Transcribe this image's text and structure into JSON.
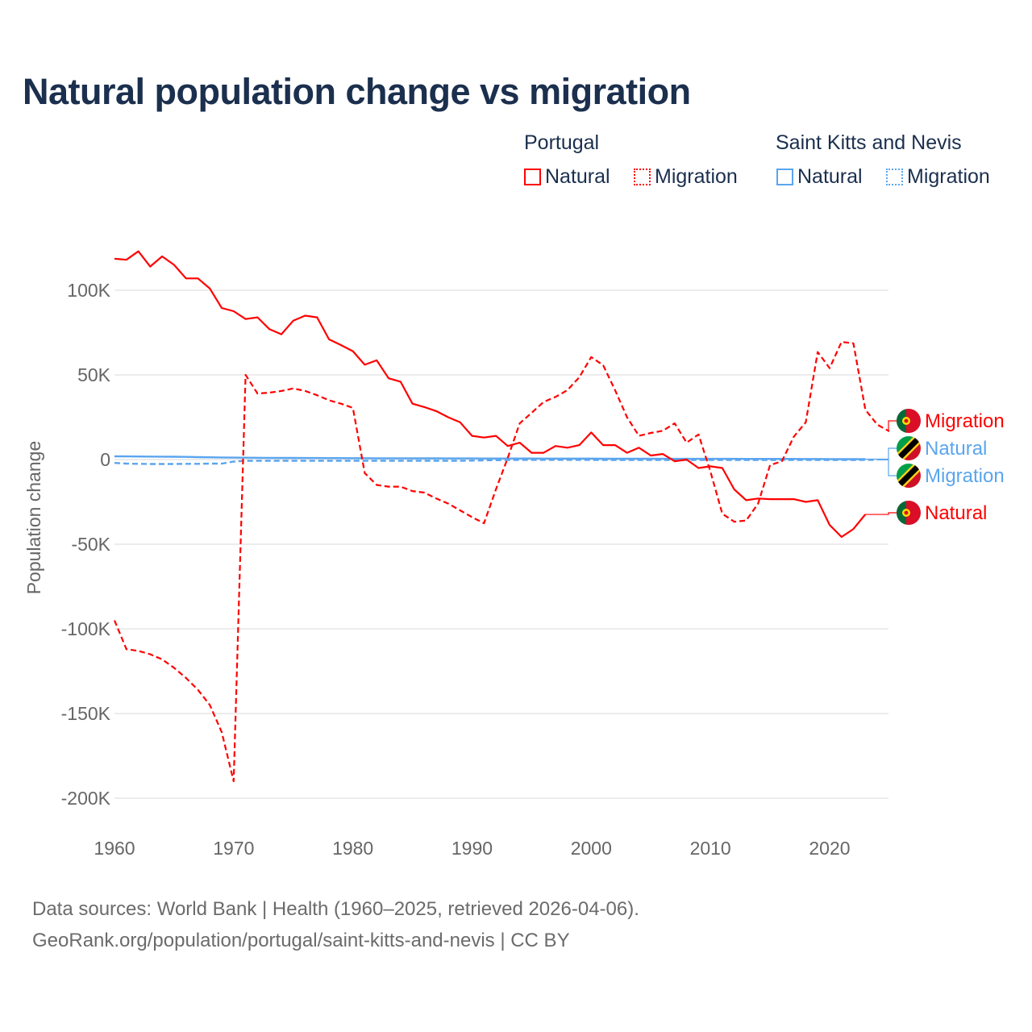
{
  "title": "Natural population change vs migration",
  "legend": {
    "groups": [
      {
        "name": "Portugal",
        "color": "#ff0000",
        "items": [
          "Natural",
          "Migration"
        ]
      },
      {
        "name": "Saint Kitts and Nevis",
        "color": "#5aa5ef",
        "items": [
          "Natural",
          "Migration"
        ]
      }
    ]
  },
  "footer": {
    "line1": "Data sources: World Bank | Health (1960–2025, retrieved 2026-04-06).",
    "line2": "GeoRank.org/population/portugal/saint-kitts-and-nevis | CC BY"
  },
  "chart_data": {
    "type": "line",
    "title": "Natural population change vs migration",
    "ylabel": "Population change",
    "xlabel": "",
    "xlim": [
      1960,
      2025
    ],
    "ylim": [
      -200000,
      120000
    ],
    "x_ticks": [
      "1960",
      "1970",
      "1980",
      "1990",
      "2000",
      "2010",
      "2020"
    ],
    "y_ticks": [
      {
        "value": 100000,
        "label": "100K"
      },
      {
        "value": 50000,
        "label": "50K"
      },
      {
        "value": 0,
        "label": "0"
      },
      {
        "value": -50000,
        "label": "-50K"
      },
      {
        "value": -100000,
        "label": "-100K"
      },
      {
        "value": -150000,
        "label": "-150K"
      },
      {
        "value": -200000,
        "label": "-200K"
      }
    ],
    "grid": true,
    "legend_position": "top-right",
    "start_year": 1960,
    "series": [
      {
        "name": "Portugal Natural",
        "end_label": "Natural",
        "country": "Portugal",
        "color": "#ff0000",
        "dash": false,
        "values": [
          118600,
          118000,
          123000,
          114000,
          120000,
          115000,
          107000,
          107000,
          101000,
          89500,
          87600,
          83000,
          84000,
          77000,
          74000,
          82000,
          85000,
          84000,
          71000,
          67600,
          64000,
          56000,
          58600,
          48000,
          46000,
          33000,
          31000,
          28600,
          25000,
          22000,
          14000,
          13000,
          14000,
          8000,
          10000,
          4000,
          4000,
          8000,
          7000,
          8500,
          16000,
          8500,
          8500,
          4000,
          7000,
          2400,
          3300,
          -1000,
          0,
          -5000,
          -4000,
          -5000,
          -17600,
          -24000,
          -23000,
          -23400,
          -23400,
          -23400,
          -25000,
          -24000,
          -38600,
          -45700,
          -41000,
          -32400
        ]
      },
      {
        "name": "Portugal Migration",
        "end_label": "Migration",
        "country": "Portugal",
        "color": "#ff0000",
        "dash": true,
        "values": [
          -95000,
          -112000,
          -113000,
          -115000,
          -118000,
          -123000,
          -129000,
          -136000,
          -145000,
          -161000,
          -190000,
          50000,
          39000,
          39500,
          40500,
          42000,
          40500,
          38000,
          35000,
          33000,
          30500,
          -8000,
          -15000,
          -16000,
          -16000,
          -18600,
          -19500,
          -23000,
          -26000,
          -30000,
          -34000,
          -37600,
          -17600,
          1000,
          21400,
          27600,
          34000,
          37000,
          41000,
          48600,
          60500,
          55700,
          41000,
          25000,
          14000,
          15700,
          17000,
          21400,
          10000,
          14800,
          -7000,
          -32000,
          -36700,
          -36000,
          -26000,
          -3300,
          -1000,
          13500,
          22000,
          63500,
          54000,
          69500,
          68600,
          29500,
          20600,
          16700
        ]
      },
      {
        "name": "Saint Kitts and Nevis Natural",
        "end_label": "Natural",
        "country": "Saint Kitts and Nevis",
        "color": "#5aa5ef",
        "dash": false,
        "values": [
          1900,
          1850,
          1800,
          1750,
          1700,
          1650,
          1550,
          1450,
          1350,
          1250,
          1150,
          1100,
          1050,
          1000,
          950,
          950,
          900,
          900,
          850,
          850,
          800,
          800,
          750,
          750,
          750,
          700,
          700,
          700,
          650,
          650,
          650,
          600,
          600,
          600,
          600,
          600,
          550,
          550,
          550,
          550,
          550,
          500,
          500,
          500,
          500,
          500,
          450,
          450,
          450,
          450,
          450,
          450,
          450,
          400,
          400,
          400,
          400,
          400,
          350,
          350,
          300,
          250,
          250,
          250
        ]
      },
      {
        "name": "Saint Kitts and Nevis Migration",
        "end_label": "Migration",
        "country": "Saint Kitts and Nevis",
        "color": "#5aa5ef",
        "dash": true,
        "values": [
          -2000,
          -2400,
          -2500,
          -2600,
          -2600,
          -2600,
          -2500,
          -2500,
          -2400,
          -2400,
          -1200,
          -700,
          -700,
          -700,
          -700,
          -700,
          -700,
          -700,
          -700,
          -700,
          -700,
          -700,
          -700,
          -700,
          -700,
          -700,
          -700,
          -700,
          -700,
          -700,
          -600,
          -500,
          -400,
          -300,
          -200,
          -200,
          -200,
          -200,
          -200,
          -200,
          -200,
          -300,
          -300,
          -300,
          -300,
          -300,
          -300,
          -300,
          -300,
          -300,
          -300,
          -300,
          -300,
          -300,
          -300,
          -300,
          -300,
          -300,
          -300,
          -300,
          -300,
          -300,
          -300,
          -200,
          -200
        ]
      }
    ]
  }
}
